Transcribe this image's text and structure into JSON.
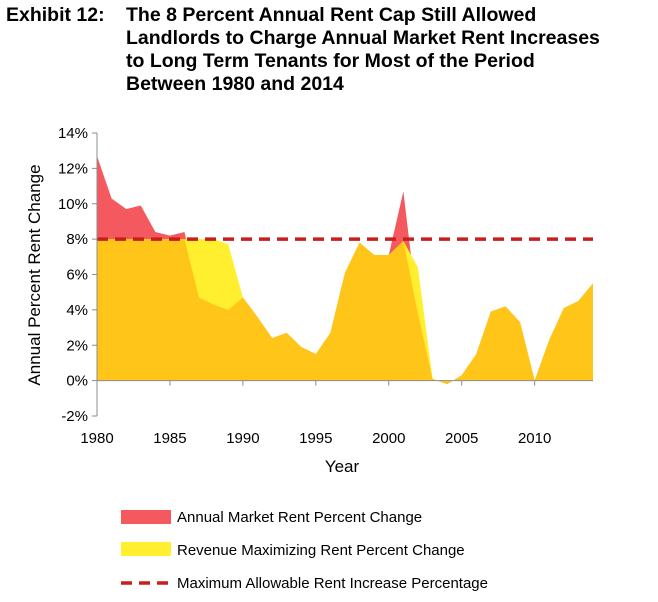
{
  "title": {
    "lead": "Exhibit 12:",
    "lines": [
      "The 8 Percent Annual Rent Cap Still Allowed",
      "Landlords to Charge Annual Market Rent Increases",
      "to Long Term Tenants for Most of the Period",
      "Between 1980 and 2014"
    ]
  },
  "chart_data": {
    "type": "area",
    "xlabel": "Year",
    "ylabel": "Annual Percent Rent Change",
    "xlim": [
      1980,
      2014
    ],
    "ylim": [
      -2,
      14
    ],
    "x_ticks": [
      "1980",
      "1985",
      "1990",
      "1995",
      "2000",
      "2005",
      "2010"
    ],
    "y_ticks": [
      "-2%",
      "0%",
      "2%",
      "4%",
      "6%",
      "8%",
      "10%",
      "12%",
      "14%"
    ],
    "x": [
      1980,
      1981,
      1982,
      1983,
      1984,
      1985,
      1986,
      1987,
      1988,
      1989,
      1990,
      1991,
      1992,
      1993,
      1994,
      1995,
      1996,
      1997,
      1998,
      1999,
      2000,
      2001,
      2002,
      2003,
      2004,
      2005,
      2006,
      2007,
      2008,
      2009,
      2010,
      2011,
      2012,
      2013,
      2014
    ],
    "series": [
      {
        "name": "Annual Market Rent Percent Change",
        "color": "#f4595f",
        "values": [
          12.7,
          10.3,
          9.7,
          9.9,
          8.4,
          8.2,
          8.4,
          4.7,
          4.3,
          4.0,
          4.7,
          3.6,
          2.4,
          2.7,
          1.9,
          1.5,
          2.7,
          6.1,
          7.8,
          7.1,
          7.1,
          10.7,
          3.8,
          0.1,
          -0.2,
          0.3,
          1.5,
          3.9,
          4.2,
          3.3,
          0.0,
          2.3,
          4.1,
          4.5,
          5.5
        ]
      },
      {
        "name": "Revenue Maximizing Rent Percent Change",
        "color": "#ffef2e",
        "values": [
          8.0,
          8.0,
          8.0,
          8.0,
          8.0,
          8.0,
          8.0,
          8.0,
          8.0,
          7.7,
          4.7,
          3.6,
          2.4,
          2.7,
          1.9,
          1.5,
          2.7,
          6.1,
          7.8,
          7.1,
          7.1,
          7.9,
          6.4,
          0.1,
          -0.2,
          0.3,
          1.5,
          3.9,
          4.2,
          3.3,
          0.0,
          2.3,
          4.1,
          4.5,
          5.5
        ]
      },
      {
        "name": "Maximum Allowable Rent Increase Percentage",
        "color": "#c81e1e",
        "style": "dashed",
        "values": [
          8,
          8,
          8,
          8,
          8,
          8,
          8,
          8,
          8,
          8,
          8,
          8,
          8,
          8,
          8,
          8,
          8,
          8,
          8,
          8,
          8,
          8,
          8,
          8,
          8,
          8,
          8,
          8,
          8,
          8,
          8,
          8,
          8,
          8,
          8
        ]
      }
    ],
    "overlap_color": "#ffc619",
    "grid": false,
    "legend_position": "bottom"
  }
}
